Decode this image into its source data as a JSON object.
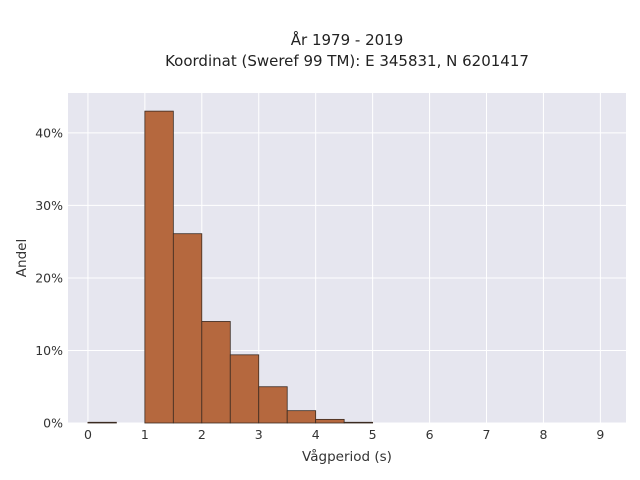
{
  "chart_data": {
    "type": "bar",
    "title_line1": "År 1979 - 2019",
    "title_line2": "Koordinat (Sweref 99 TM): E 345831, N 6201417",
    "xlabel": "Vågperiod (s)",
    "ylabel": "Andel",
    "bin_width": 0.5,
    "bins": [
      {
        "start": 0.0,
        "value": 0.1
      },
      {
        "start": 0.5,
        "value": 0.0
      },
      {
        "start": 1.0,
        "value": 43.0
      },
      {
        "start": 1.5,
        "value": 26.1
      },
      {
        "start": 2.0,
        "value": 14.0
      },
      {
        "start": 2.5,
        "value": 9.4
      },
      {
        "start": 3.0,
        "value": 5.0
      },
      {
        "start": 3.5,
        "value": 1.7
      },
      {
        "start": 4.0,
        "value": 0.5
      },
      {
        "start": 4.5,
        "value": 0.1
      }
    ],
    "xlim": [
      -0.35,
      9.45
    ],
    "ylim": [
      0,
      45.5
    ],
    "x_ticks": [
      0,
      1,
      2,
      3,
      4,
      5,
      6,
      7,
      8,
      9
    ],
    "x_tick_labels": [
      "0",
      "1",
      "2",
      "3",
      "4",
      "5",
      "6",
      "7",
      "8",
      "9"
    ],
    "y_ticks": [
      0,
      10,
      20,
      30,
      40
    ],
    "y_tick_labels": [
      "0%",
      "10%",
      "20%",
      "30%",
      "40%"
    ],
    "grid": true,
    "colors": {
      "bar_fill": "#b5683e",
      "bar_stroke": "#3a2a20",
      "plot_background": "#e6e6ef",
      "grid": "#ffffff"
    }
  }
}
